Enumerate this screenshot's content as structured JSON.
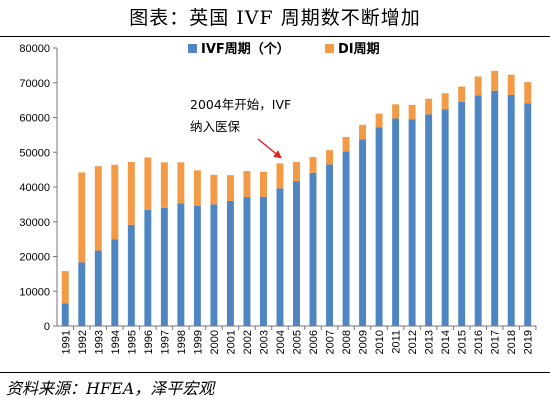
{
  "title": "图表：英国 IVF 周期数不断增加",
  "source": "资料来源：HFEA，泽平宏观",
  "chart_data": {
    "type": "bar",
    "stacked": true,
    "categories": [
      "1991",
      "1992",
      "1993",
      "1994",
      "1995",
      "1996",
      "1997",
      "1998",
      "1999",
      "2000",
      "2001",
      "2002",
      "2003",
      "2004",
      "2005",
      "2006",
      "2007",
      "2008",
      "2009",
      "2010",
      "2011",
      "2012",
      "2013",
      "2014",
      "2015",
      "2016",
      "2017",
      "2018",
      "2019"
    ],
    "series": [
      {
        "name": "IVF周期（个）",
        "color": "#4f86c2",
        "values": [
          6500,
          18300,
          21700,
          24900,
          29100,
          33400,
          34000,
          35300,
          34600,
          35000,
          36000,
          37100,
          37200,
          39600,
          41700,
          44100,
          46500,
          50200,
          53700,
          57200,
          59700,
          59500,
          60900,
          62300,
          64500,
          66400,
          67700,
          66500,
          64100
        ]
      },
      {
        "name": "DI周期",
        "color": "#f39a47",
        "values": [
          9300,
          25900,
          24300,
          21500,
          18100,
          15100,
          13100,
          11800,
          10200,
          8500,
          7400,
          7500,
          7200,
          7200,
          5500,
          4500,
          4100,
          4200,
          4200,
          3900,
          4100,
          4100,
          4500,
          4700,
          4400,
          5400,
          5700,
          5800,
          6100
        ]
      }
    ],
    "ylim": [
      0,
      80000
    ],
    "yticks": [
      "0",
      "10000",
      "20000",
      "30000",
      "40000",
      "50000",
      "60000",
      "70000",
      "80000"
    ],
    "legend_position": "top",
    "annotation": {
      "lines": [
        "2004年开始，IVF",
        "纳入医保"
      ],
      "target_category": "2004"
    }
  }
}
